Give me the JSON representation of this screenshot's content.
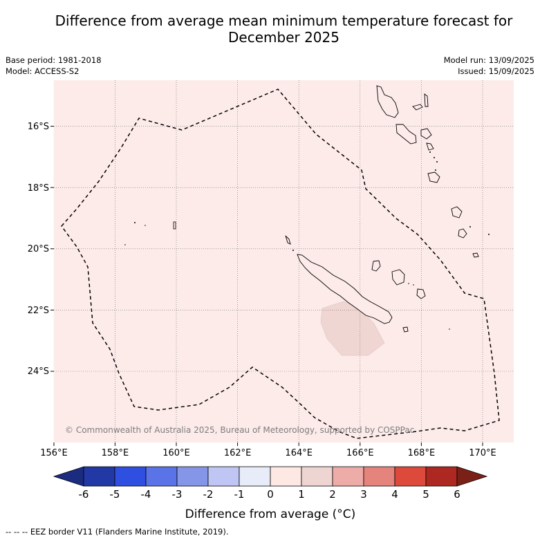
{
  "title_line1": "Difference from average mean minimum temperature forecast for",
  "title_line2": "December 2025",
  "base_period": "Base period: 1981-2018",
  "model": "Model: ACCESS-S2",
  "model_run": "Model run: 13/09/2025",
  "issued": "Issued: 15/09/2025",
  "copyright": "© Commonwealth of Australia 2025, Bureau of Meteorology, supported by COSPPac",
  "map": {
    "lon_range": [
      156.0,
      171.0
    ],
    "lat_range": [
      -14.5,
      -26.3
    ],
    "lon_ticks": [
      "156°E",
      "158°E",
      "160°E",
      "162°E",
      "164°E",
      "166°E",
      "168°E",
      "170°E"
    ],
    "lat_ticks": [
      "16°S",
      "18°S",
      "20°S",
      "22°S",
      "24°S"
    ],
    "background_anomaly_category": "0 to 1",
    "background_color": "#fcebe9",
    "highlight_anomaly_category": "1 to 2",
    "highlight_color": "#f0d6d3"
  },
  "colorbar": {
    "label": "Difference from average (°C)",
    "tick_labels": [
      "-6",
      "-5",
      "-4",
      "-3",
      "-2",
      "-1",
      "0",
      "1",
      "2",
      "3",
      "4",
      "5",
      "6"
    ],
    "colors": [
      "#2238a5",
      "#2f4fe0",
      "#5a73e6",
      "#8596e8",
      "#bfc6f3",
      "#e8ecf9",
      "#fde8e4",
      "#efd5d2",
      "#eeaca8",
      "#e4847c",
      "#dd4a3c",
      "#ad2820"
    ],
    "under_color": "#1b2c80",
    "over_color": "#7b2016"
  },
  "footnote": "--  --  -- EEZ border V11 (Flanders Marine Institute, 2019)."
}
